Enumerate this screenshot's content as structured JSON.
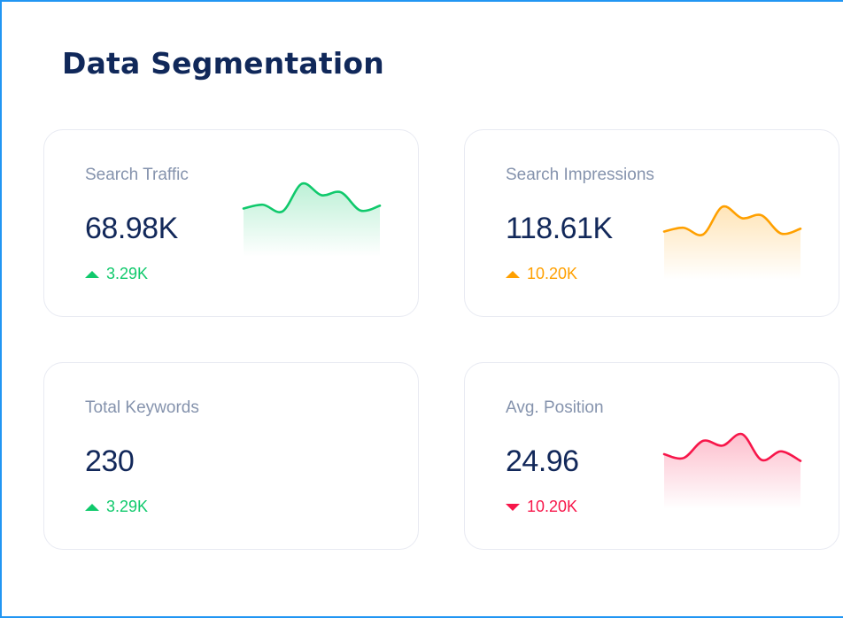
{
  "title": "Data Segmentation",
  "colors": {
    "green": "#10c96c",
    "orange": "#ffa000",
    "red": "#f7164a",
    "navy": "#12285a",
    "label": "#8593ad"
  },
  "cards": [
    {
      "label": "Search Traffic",
      "value": "68.98K",
      "delta": "3.29K",
      "direction": "up",
      "color": "#10c96c",
      "spark": [
        36,
        44,
        30,
        88,
        64,
        70,
        32,
        42
      ]
    },
    {
      "label": "Search Impressions",
      "value": "118.61K",
      "delta": "10.20K",
      "direction": "up",
      "color": "#ffa000",
      "spark": [
        36,
        44,
        30,
        88,
        64,
        70,
        32,
        42
      ]
    },
    {
      "label": "Total Keywords",
      "value": "230",
      "delta": "3.29K",
      "direction": "up",
      "color": "#10c96c",
      "spark": null
    },
    {
      "label": "Avg. Position",
      "value": "24.96",
      "delta": "10.20K",
      "direction": "down",
      "color": "#f7164a",
      "spark": [
        50,
        42,
        78,
        68,
        92,
        38,
        56,
        36
      ]
    }
  ]
}
